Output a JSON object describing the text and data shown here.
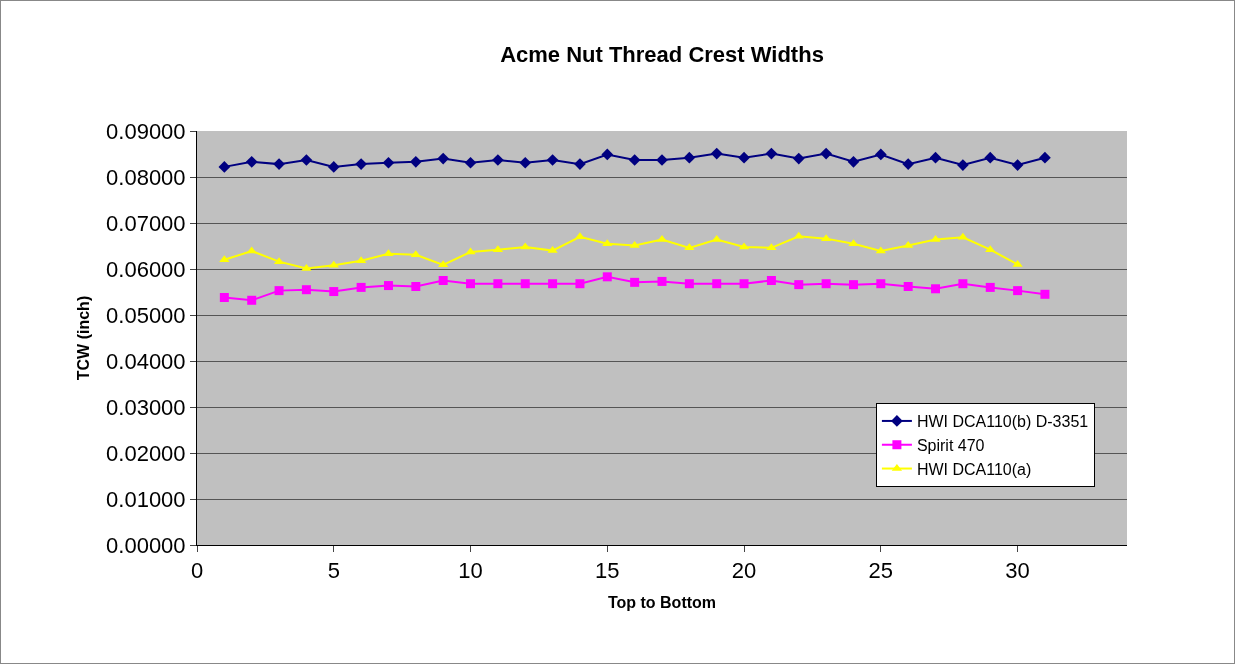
{
  "chart_data": {
    "type": "line",
    "title": "Acme Nut Thread Crest Widths",
    "xlabel": "Top to Bottom",
    "ylabel": "TCW (inch)",
    "x": [
      1,
      2,
      3,
      4,
      5,
      6,
      7,
      8,
      9,
      10,
      11,
      12,
      13,
      14,
      15,
      16,
      17,
      18,
      19,
      20,
      21,
      22,
      23,
      24,
      25,
      26,
      27,
      28,
      29,
      30,
      31
    ],
    "xlim": [
      0,
      34
    ],
    "xticks": [
      0,
      5,
      10,
      15,
      20,
      25,
      30
    ],
    "ylim": [
      0,
      0.09
    ],
    "yticks": [
      {
        "value": 0,
        "label": "0.00000"
      },
      {
        "value": 0.01,
        "label": "0.01000"
      },
      {
        "value": 0.02,
        "label": "0.02000"
      },
      {
        "value": 0.03,
        "label": "0.03000"
      },
      {
        "value": 0.04,
        "label": "0.04000"
      },
      {
        "value": 0.05,
        "label": "0.05000"
      },
      {
        "value": 0.06,
        "label": "0.06000"
      },
      {
        "value": 0.07,
        "label": "0.07000"
      },
      {
        "value": 0.08,
        "label": "0.08000"
      },
      {
        "value": 0.09,
        "label": "0.09000"
      }
    ],
    "grid": "y",
    "legend": "bottom right",
    "line_style": "solid",
    "series": [
      {
        "name": "HWI DCA110(b) D-3351",
        "color": "#000080",
        "marker": "diamond",
        "values": [
          0.0822,
          0.0833,
          0.0828,
          0.0837,
          0.0822,
          0.0828,
          0.0831,
          0.0833,
          0.084,
          0.0831,
          0.0837,
          0.0831,
          0.0837,
          0.0828,
          0.0849,
          0.0837,
          0.0837,
          0.0842,
          0.0851,
          0.0842,
          0.0851,
          0.084,
          0.0851,
          0.0833,
          0.0849,
          0.0828,
          0.0842,
          0.0826,
          0.0842,
          0.0826,
          0.0842
        ]
      },
      {
        "name": "Spirit 470",
        "color": "#ff00ff",
        "marker": "square",
        "values": [
          0.0538,
          0.0532,
          0.0553,
          0.0555,
          0.0551,
          0.056,
          0.0564,
          0.0562,
          0.0575,
          0.0568,
          0.0568,
          0.0568,
          0.0568,
          0.0568,
          0.0583,
          0.0571,
          0.0573,
          0.0568,
          0.0568,
          0.0568,
          0.0575,
          0.0566,
          0.0568,
          0.0566,
          0.0568,
          0.0562,
          0.0557,
          0.0568,
          0.056,
          0.0553,
          0.0545
        ]
      },
      {
        "name": "HWI DCA110(a)",
        "color": "#ffff00",
        "marker": "triangle",
        "values": [
          0.062,
          0.0639,
          0.0616,
          0.0601,
          0.0608,
          0.0618,
          0.0633,
          0.0631,
          0.0609,
          0.0637,
          0.0642,
          0.0648,
          0.064,
          0.067,
          0.0655,
          0.0651,
          0.0664,
          0.0646,
          0.0664,
          0.0648,
          0.0646,
          0.0671,
          0.0666,
          0.0655,
          0.0639,
          0.0651,
          0.0664,
          0.0669,
          0.0642,
          0.061,
          null
        ]
      }
    ]
  }
}
